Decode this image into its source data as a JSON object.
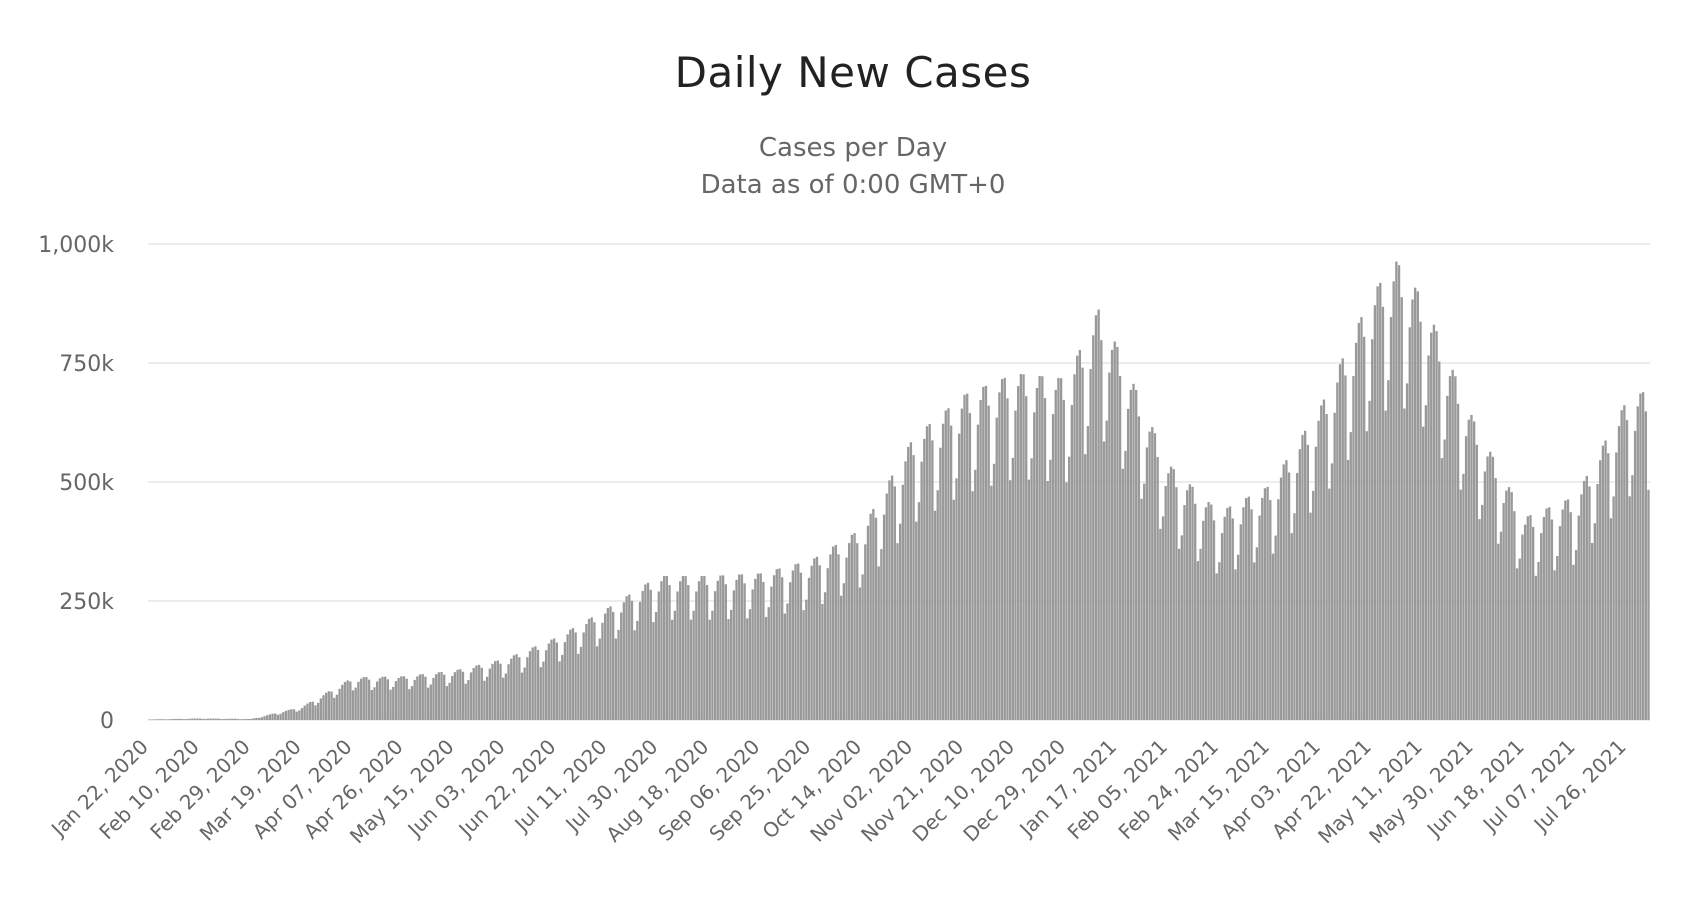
{
  "chart_data": {
    "type": "bar",
    "title": "Daily New Cases",
    "subtitle": "Cases per Day",
    "subtitle2": "Data as of 0:00 GMT+0",
    "xlabel": "",
    "ylabel": "",
    "ylim": [
      0,
      1000000
    ],
    "yticks": [
      0,
      250000,
      500000,
      750000,
      1000000
    ],
    "ytick_labels": [
      "0",
      "250k",
      "500k",
      "750k",
      "1,000k"
    ],
    "grid": true,
    "legend": "none",
    "bar_color": "#999999",
    "grid_color": "#e6e6e6",
    "x_start_date": "Jan 22, 2020",
    "x_tick_labels": [
      "Jan 22, 2020",
      "Feb 10, 2020",
      "Feb 29, 2020",
      "Mar 19, 2020",
      "Apr 07, 2020",
      "Apr 26, 2020",
      "May 15, 2020",
      "Jun 03, 2020",
      "Jun 22, 2020",
      "Jul 11, 2020",
      "Jul 30, 2020",
      "Aug 18, 2020",
      "Sep 06, 2020",
      "Sep 25, 2020",
      "Oct 14, 2020",
      "Nov 02, 2020",
      "Nov 21, 2020",
      "Dec 10, 2020",
      "Dec 29, 2020",
      "Jan 17, 2021",
      "Feb 05, 2021",
      "Feb 24, 2021",
      "Mar 15, 2021",
      "Apr 03, 2021",
      "Apr 22, 2021",
      "May 11, 2021",
      "May 30, 2021",
      "Jun 18, 2021",
      "Jul 07, 2021",
      "Jul 26, 2021"
    ],
    "trend": [
      [
        "Jan 22, 2020",
        1000
      ],
      [
        "Feb 10, 2020",
        3000
      ],
      [
        "Feb 29, 2020",
        2000
      ],
      [
        "Mar 19, 2020",
        25000
      ],
      [
        "Apr 07, 2020",
        80000
      ],
      [
        "Apr 26, 2020",
        82000
      ],
      [
        "May 15, 2020",
        93000
      ],
      [
        "Jun 03, 2020",
        115000
      ],
      [
        "Jun 22, 2020",
        155000
      ],
      [
        "Jul 11, 2020",
        210000
      ],
      [
        "Jul 30, 2020",
        270000
      ],
      [
        "Aug 18, 2020",
        270000
      ],
      [
        "Sep 06, 2020",
        275000
      ],
      [
        "Sep 25, 2020",
        300000
      ],
      [
        "Oct 14, 2020",
        360000
      ],
      [
        "Nov 02, 2020",
        530000
      ],
      [
        "Nov 21, 2020",
        610000
      ],
      [
        "Dec 10, 2020",
        650000
      ],
      [
        "Dec 29, 2020",
        640000
      ],
      [
        "Jan 10, 2021",
        770000
      ],
      [
        "Jan 17, 2021",
        700000
      ],
      [
        "Feb 05, 2021",
        480000
      ],
      [
        "Feb 24, 2021",
        390000
      ],
      [
        "Mar 15, 2021",
        440000
      ],
      [
        "Apr 03, 2021",
        590000
      ],
      [
        "Apr 22, 2021",
        800000
      ],
      [
        "May 01, 2021",
        860000
      ],
      [
        "May 11, 2021",
        790000
      ],
      [
        "May 30, 2021",
        560000
      ],
      [
        "Jun 18, 2021",
        380000
      ],
      [
        "Jul 07, 2021",
        420000
      ],
      [
        "Jul 26, 2021",
        600000
      ],
      [
        "Aug 03, 2021",
        620000
      ]
    ],
    "weekly_amplitude": 0.17
  }
}
